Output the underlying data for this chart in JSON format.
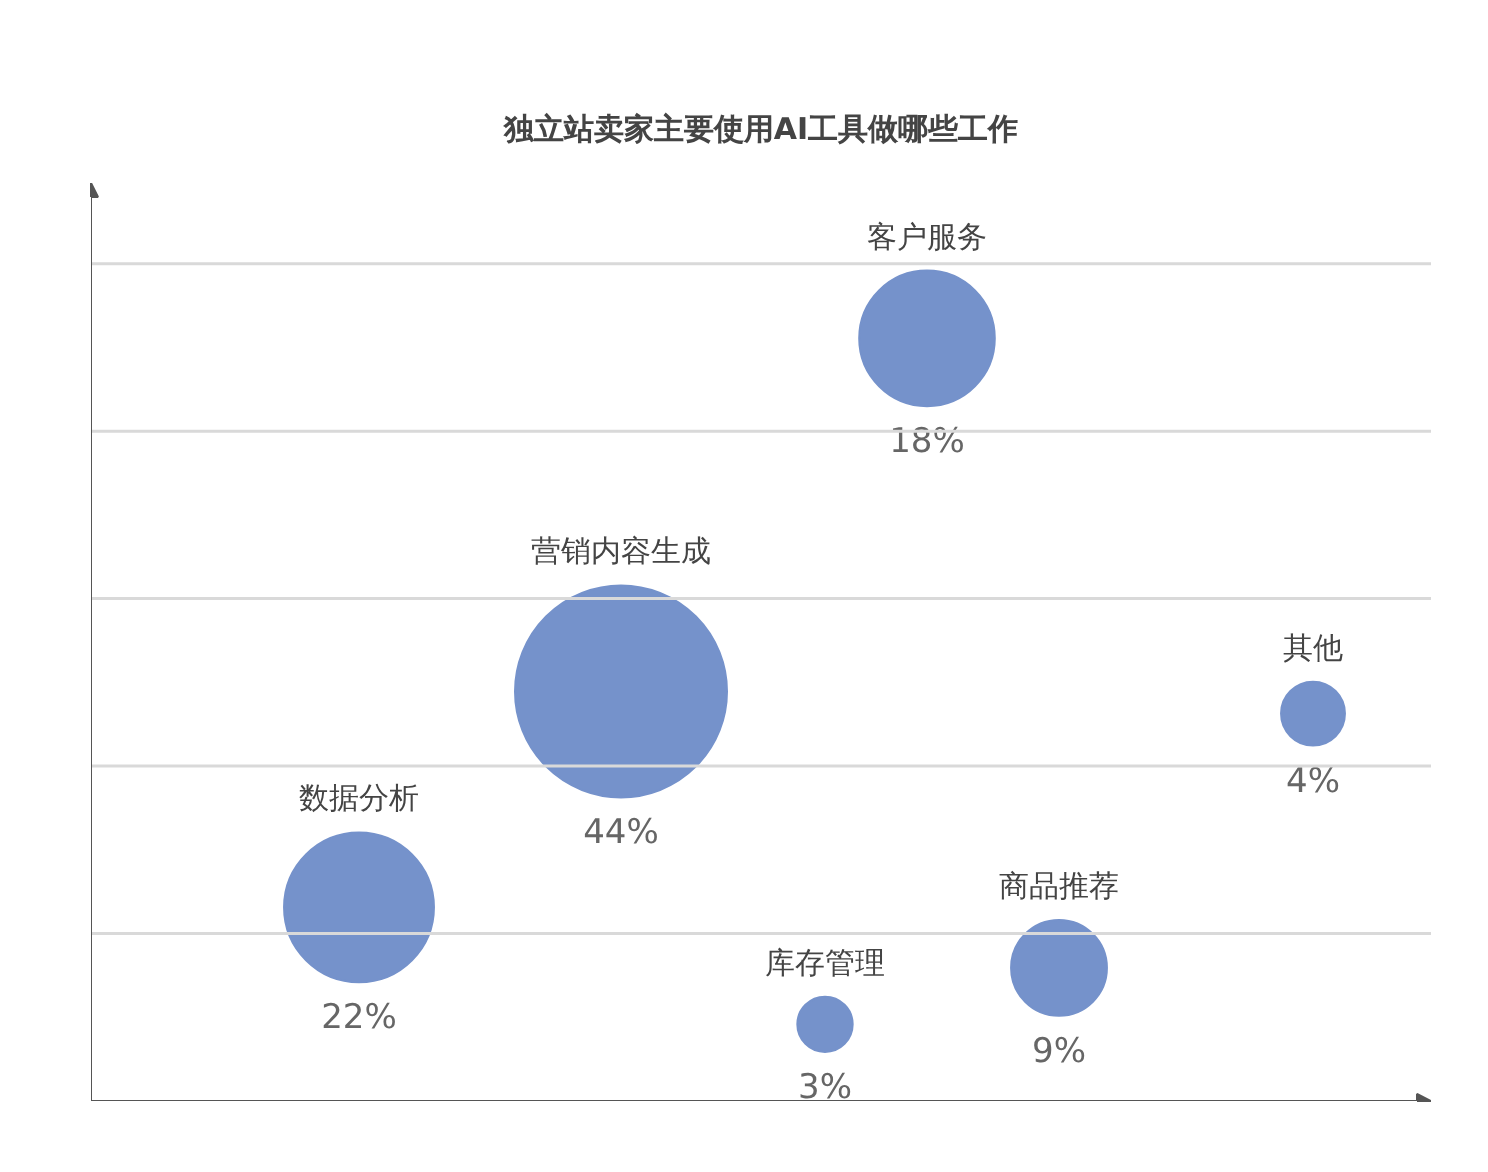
{
  "chart_data": {
    "type": "other",
    "title": "独立站卖家主要使用AI工具做哪些工作",
    "categories": [
      "客户服务",
      "营销内容生成",
      "其他",
      "数据分析",
      "库存管理",
      "商品推荐"
    ],
    "values": [
      18,
      44,
      4,
      22,
      3,
      9
    ],
    "colors": [
      "#7592cb",
      "#7592cb",
      "#7592cb",
      "#7592cb",
      "#7592cb",
      "#7592cb"
    ],
    "value_labels": [
      "18%",
      "44%",
      "4%",
      "22%",
      "3%",
      "9%"
    ]
  }
}
